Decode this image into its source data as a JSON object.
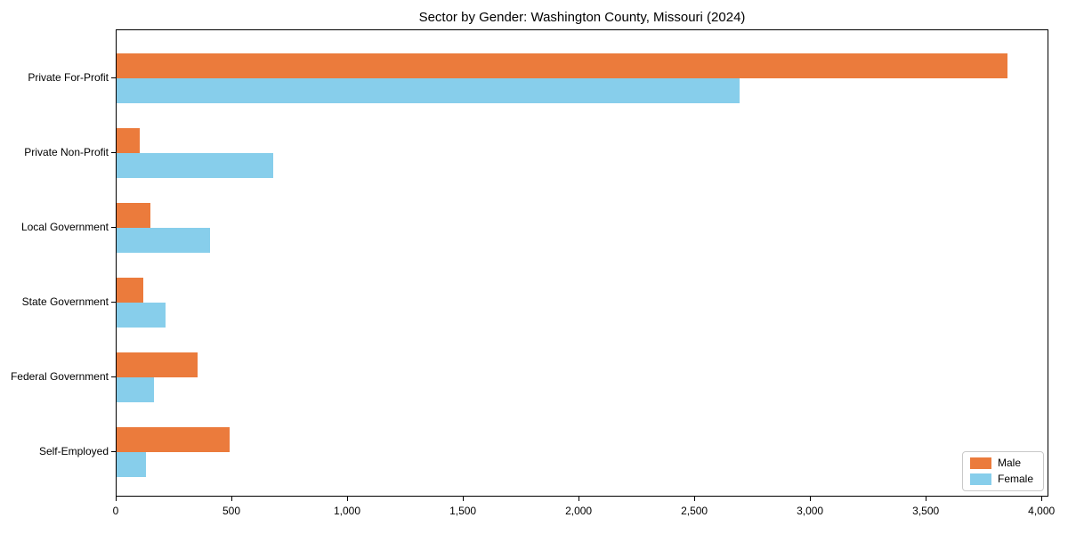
{
  "chart_data": {
    "type": "bar",
    "orientation": "horizontal",
    "title": "Sector by Gender: Washington County, Missouri (2024)",
    "categories": [
      "Private For-Profit",
      "Private Non-Profit",
      "Local Government",
      "State Government",
      "Federal Government",
      "Self-Employed"
    ],
    "series": [
      {
        "name": "Male",
        "color": "#eb7b3c",
        "values": [
          3850,
          100,
          145,
          115,
          350,
          490
        ]
      },
      {
        "name": "Female",
        "color": "#87ceeb",
        "values": [
          2690,
          675,
          405,
          210,
          160,
          125
        ]
      }
    ],
    "xlabel": "",
    "ylabel": "",
    "xlim": [
      0,
      4030
    ],
    "xticks": [
      0,
      500,
      1000,
      1500,
      2000,
      2500,
      3000,
      3500,
      4000
    ],
    "xtick_labels": [
      "0",
      "500",
      "1,000",
      "1,500",
      "2,000",
      "2,500",
      "3,000",
      "3,500",
      "4,000"
    ],
    "legend": {
      "position": "lower right"
    },
    "grid": false
  }
}
